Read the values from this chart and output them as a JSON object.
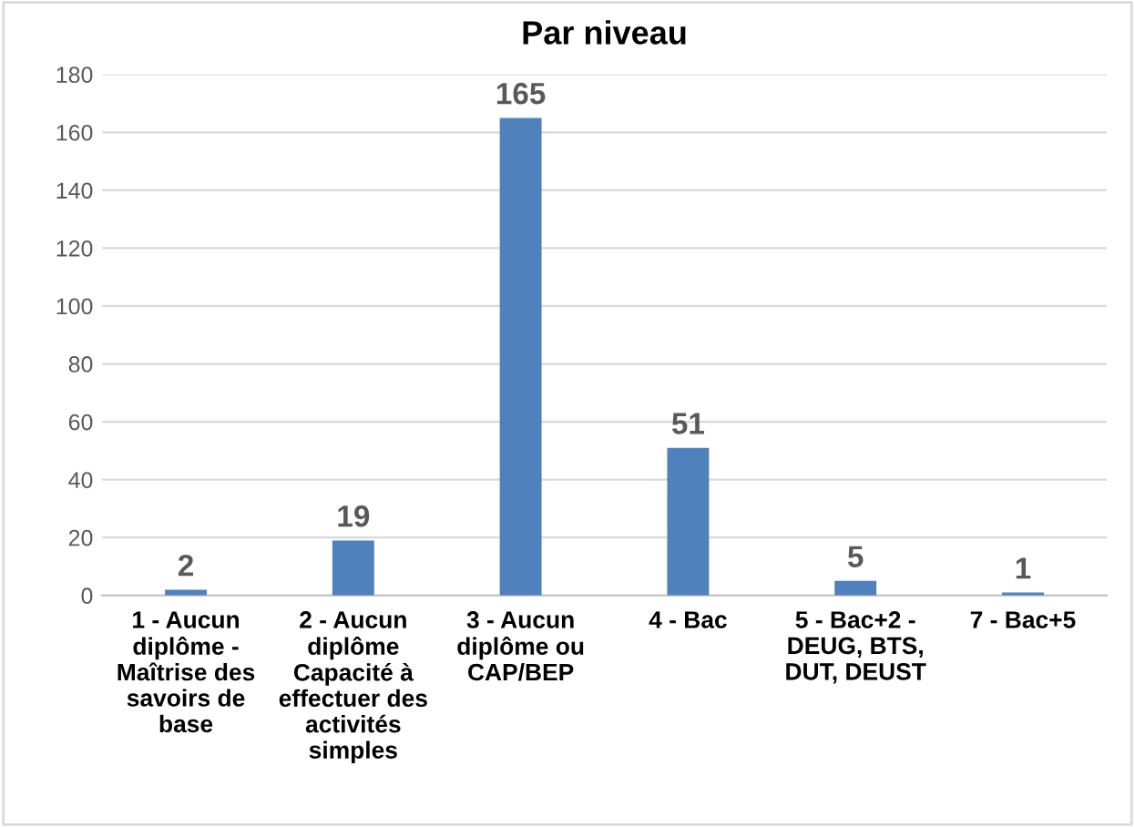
{
  "chart_data": {
    "type": "bar",
    "title": "Par niveau",
    "categories": [
      "1 - Aucun\ndiplôme -\nMaîtrise des\nsavoirs de\nbase",
      "2 - Aucun\ndiplôme\nCapacité à\neffectuer des\nactivités\nsimples",
      "3 - Aucun\ndiplôme ou\nCAP/BEP",
      "4 - Bac",
      "5 - Bac+2 -\nDEUG, BTS,\nDUT, DEUST",
      "7 - Bac+5"
    ],
    "values": [
      2,
      19,
      165,
      51,
      5,
      1
    ],
    "color": "#4f81bd",
    "ylim": [
      0,
      180
    ],
    "yticks": [
      0,
      20,
      40,
      60,
      80,
      100,
      120,
      140,
      160,
      180
    ],
    "grid": "y",
    "data_labels": true
  }
}
